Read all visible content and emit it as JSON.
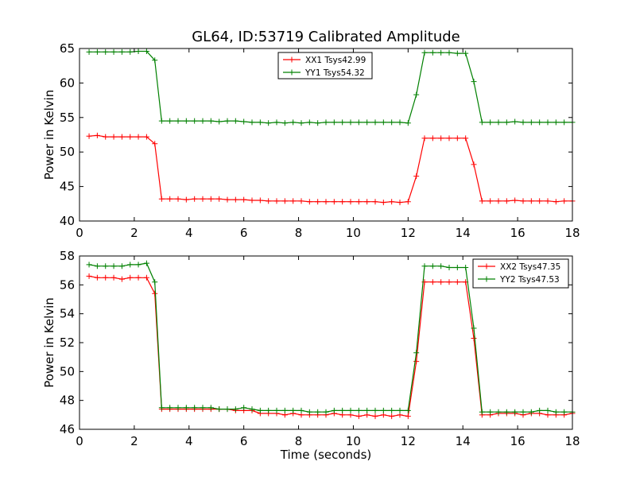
{
  "figure": {
    "title": "GL64, ID:53719 Calibrated Amplitude",
    "colors": {
      "red": "#ff0000",
      "green": "#008000"
    }
  },
  "chart_data": [
    {
      "type": "line",
      "xlabel": "",
      "ylabel": "Power in Kelvin",
      "xlim": [
        0,
        18
      ],
      "ylim": [
        40,
        65
      ],
      "xticks": [
        "0",
        "2",
        "4",
        "6",
        "8",
        "10",
        "12",
        "14",
        "16",
        "18"
      ],
      "yticks": [
        "40",
        "45",
        "50",
        "55",
        "60",
        "65"
      ],
      "grid": false,
      "legend": "top-center",
      "x": [
        0.35,
        0.65,
        0.95,
        1.25,
        1.55,
        1.85,
        2.15,
        2.45,
        2.75,
        3.0,
        3.3,
        3.6,
        3.9,
        4.2,
        4.5,
        4.8,
        5.1,
        5.4,
        5.7,
        6.0,
        6.3,
        6.6,
        6.9,
        7.2,
        7.5,
        7.8,
        8.1,
        8.4,
        8.7,
        9.0,
        9.3,
        9.6,
        9.9,
        10.2,
        10.5,
        10.8,
        11.1,
        11.4,
        11.7,
        12.0,
        12.3,
        12.6,
        12.9,
        13.2,
        13.5,
        13.8,
        14.1,
        14.4,
        14.7,
        15.0,
        15.3,
        15.6,
        15.9,
        16.2,
        16.5,
        16.8,
        17.1,
        17.4,
        17.7,
        18.0
      ],
      "series": [
        {
          "name": "XX1 Tsys42.99",
          "color": "#ff0000",
          "values": [
            52.3,
            52.4,
            52.2,
            52.2,
            52.2,
            52.2,
            52.2,
            52.2,
            51.2,
            43.2,
            43.2,
            43.2,
            43.1,
            43.2,
            43.2,
            43.2,
            43.2,
            43.1,
            43.1,
            43.1,
            43.0,
            43.0,
            42.9,
            42.9,
            42.9,
            42.9,
            42.9,
            42.8,
            42.8,
            42.8,
            42.8,
            42.8,
            42.8,
            42.8,
            42.8,
            42.8,
            42.7,
            42.8,
            42.7,
            42.8,
            46.5,
            52.0,
            52.0,
            52.0,
            52.0,
            52.0,
            52.0,
            48.2,
            42.9,
            42.9,
            42.9,
            42.9,
            43.0,
            42.9,
            42.9,
            42.9,
            42.9,
            42.8,
            42.9,
            42.9
          ]
        },
        {
          "name": "YY1 Tsys54.32",
          "color": "#008000",
          "values": [
            64.5,
            64.5,
            64.5,
            64.5,
            64.5,
            64.5,
            64.6,
            64.6,
            63.3,
            54.5,
            54.5,
            54.5,
            54.5,
            54.5,
            54.5,
            54.5,
            54.4,
            54.5,
            54.5,
            54.4,
            54.3,
            54.3,
            54.2,
            54.3,
            54.2,
            54.3,
            54.2,
            54.3,
            54.2,
            54.3,
            54.3,
            54.3,
            54.3,
            54.3,
            54.3,
            54.3,
            54.3,
            54.3,
            54.3,
            54.2,
            58.3,
            64.4,
            64.4,
            64.4,
            64.4,
            64.3,
            64.3,
            60.2,
            54.3,
            54.3,
            54.3,
            54.3,
            54.4,
            54.3,
            54.3,
            54.3,
            54.3,
            54.3,
            54.3,
            54.3
          ]
        }
      ]
    },
    {
      "type": "line",
      "xlabel": "Time (seconds)",
      "ylabel": "Power in Kelvin",
      "xlim": [
        0,
        18
      ],
      "ylim": [
        46,
        58
      ],
      "xticks": [
        "0",
        "2",
        "4",
        "6",
        "8",
        "10",
        "12",
        "14",
        "16",
        "18"
      ],
      "yticks": [
        "46",
        "48",
        "50",
        "52",
        "54",
        "56",
        "58"
      ],
      "grid": false,
      "legend": "top-right",
      "x": [
        0.35,
        0.65,
        0.95,
        1.25,
        1.55,
        1.85,
        2.15,
        2.45,
        2.75,
        3.0,
        3.3,
        3.6,
        3.9,
        4.2,
        4.5,
        4.8,
        5.1,
        5.4,
        5.7,
        6.0,
        6.3,
        6.6,
        6.9,
        7.2,
        7.5,
        7.8,
        8.1,
        8.4,
        8.7,
        9.0,
        9.3,
        9.6,
        9.9,
        10.2,
        10.5,
        10.8,
        11.1,
        11.4,
        11.7,
        12.0,
        12.3,
        12.6,
        12.9,
        13.2,
        13.5,
        13.8,
        14.1,
        14.4,
        14.7,
        15.0,
        15.3,
        15.6,
        15.9,
        16.2,
        16.5,
        16.8,
        17.1,
        17.4,
        17.7,
        18.0
      ],
      "series": [
        {
          "name": "XX2 Tsys47.35",
          "color": "#ff0000",
          "values": [
            56.6,
            56.5,
            56.5,
            56.5,
            56.4,
            56.5,
            56.5,
            56.5,
            55.4,
            47.4,
            47.4,
            47.4,
            47.4,
            47.4,
            47.4,
            47.4,
            47.4,
            47.4,
            47.3,
            47.3,
            47.3,
            47.1,
            47.1,
            47.1,
            47.0,
            47.1,
            47.0,
            47.0,
            47.0,
            47.0,
            47.1,
            47.0,
            47.0,
            46.9,
            47.0,
            46.9,
            47.0,
            46.9,
            47.0,
            46.9,
            50.7,
            56.2,
            56.2,
            56.2,
            56.2,
            56.2,
            56.2,
            52.3,
            47.0,
            47.0,
            47.1,
            47.1,
            47.1,
            47.0,
            47.1,
            47.1,
            47.0,
            47.0,
            47.0,
            47.1
          ]
        },
        {
          "name": "YY2 Tsys47.53",
          "color": "#008000",
          "values": [
            57.4,
            57.3,
            57.3,
            57.3,
            57.3,
            57.4,
            57.4,
            57.5,
            56.2,
            47.5,
            47.5,
            47.5,
            47.5,
            47.5,
            47.5,
            47.5,
            47.4,
            47.4,
            47.4,
            47.5,
            47.4,
            47.3,
            47.3,
            47.3,
            47.3,
            47.3,
            47.3,
            47.2,
            47.2,
            47.2,
            47.3,
            47.3,
            47.3,
            47.3,
            47.3,
            47.3,
            47.3,
            47.3,
            47.3,
            47.3,
            51.3,
            57.3,
            57.3,
            57.3,
            57.2,
            57.2,
            57.2,
            53.0,
            47.2,
            47.2,
            47.2,
            47.2,
            47.2,
            47.2,
            47.2,
            47.3,
            47.3,
            47.2,
            47.2,
            47.2
          ]
        }
      ]
    }
  ]
}
